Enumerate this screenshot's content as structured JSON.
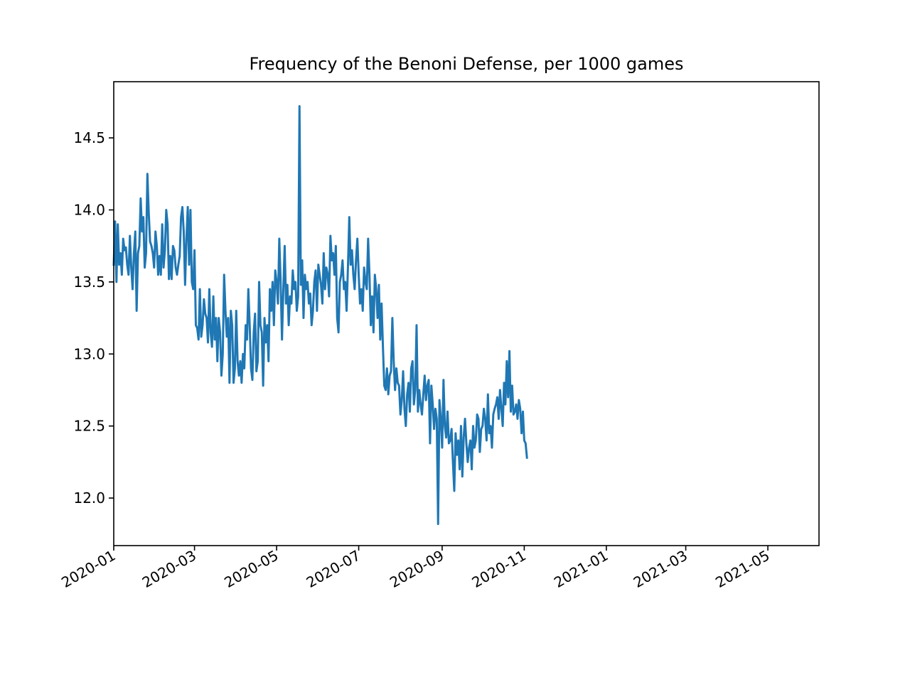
{
  "chart_data": {
    "type": "line",
    "title": "Frequency of the Benoni Defense, per 1000 games",
    "xlabel": "",
    "ylabel": "",
    "x_axis_type": "date",
    "xlim": [
      "2020-01-01",
      "2021-06-08"
    ],
    "ylim": [
      11.67,
      14.89
    ],
    "grid": false,
    "line_color": "#1f77b4",
    "x_ticks": [
      "2020-01",
      "2020-03",
      "2020-05",
      "2020-07",
      "2020-09",
      "2020-11",
      "2021-01",
      "2021-03",
      "2021-05"
    ],
    "y_ticks": [
      "12.0",
      "12.5",
      "13.0",
      "13.5",
      "14.0",
      "14.5"
    ],
    "series": [
      {
        "x_start": "2020-01-01",
        "x_step_days": 1,
        "values": [
          13.62,
          13.92,
          13.5,
          13.9,
          13.62,
          13.7,
          13.55,
          13.8,
          13.72,
          13.74,
          13.62,
          13.55,
          13.82,
          13.6,
          13.45,
          13.7,
          13.85,
          13.3,
          13.7,
          13.75,
          14.08,
          13.85,
          13.95,
          13.6,
          13.7,
          14.25,
          13.98,
          13.78,
          13.75,
          13.7,
          13.6,
          13.85,
          13.75,
          13.55,
          13.68,
          13.55,
          13.9,
          13.6,
          13.72,
          14.0,
          13.9,
          13.52,
          13.68,
          13.52,
          13.75,
          13.72,
          13.6,
          13.55,
          13.62,
          13.68,
          13.95,
          14.02,
          13.85,
          13.48,
          13.8,
          14.02,
          13.62,
          14.0,
          13.5,
          13.45,
          13.72,
          13.2,
          13.18,
          13.1,
          13.45,
          13.12,
          13.2,
          13.38,
          13.28,
          13.25,
          13.08,
          13.45,
          13.15,
          13.05,
          13.4,
          13.1,
          13.25,
          12.95,
          13.25,
          13.15,
          12.85,
          13.0,
          13.55,
          13.3,
          13.12,
          13.25,
          12.8,
          13.3,
          13.2,
          12.8,
          12.9,
          13.3,
          12.95,
          12.85,
          12.95,
          12.8,
          13.0,
          12.9,
          13.2,
          13.1,
          13.45,
          13.2,
          12.9,
          12.82,
          13.15,
          13.28,
          12.88,
          12.95,
          13.5,
          13.2,
          13.15,
          12.78,
          13.25,
          13.08,
          13.2,
          12.95,
          13.45,
          13.3,
          13.5,
          13.2,
          13.58,
          13.5,
          13.35,
          13.8,
          13.5,
          13.1,
          13.45,
          13.75,
          13.35,
          13.48,
          13.2,
          13.4,
          13.35,
          13.58,
          13.45,
          13.5,
          13.3,
          13.4,
          14.72,
          13.48,
          13.65,
          13.25,
          13.55,
          13.45,
          13.5,
          13.35,
          13.42,
          13.2,
          13.3,
          13.5,
          13.58,
          13.3,
          13.62,
          13.55,
          13.48,
          13.35,
          13.7,
          13.45,
          13.6,
          13.55,
          13.4,
          13.82,
          13.65,
          13.7,
          13.55,
          13.75,
          13.25,
          13.15,
          13.5,
          13.55,
          13.65,
          13.45,
          13.5,
          13.3,
          13.6,
          13.95,
          13.62,
          13.72,
          13.55,
          13.45,
          13.65,
          13.8,
          13.55,
          13.35,
          13.45,
          13.3,
          13.6,
          13.5,
          13.45,
          13.8,
          13.55,
          13.2,
          13.4,
          13.15,
          13.55,
          13.45,
          13.25,
          13.48,
          13.1,
          13.35,
          13.05,
          12.78,
          12.75,
          12.9,
          12.72,
          12.85,
          12.88,
          13.25,
          12.95,
          12.75,
          12.9,
          12.8,
          12.78,
          12.58,
          12.68,
          12.88,
          12.62,
          12.5,
          12.72,
          12.8,
          12.6,
          12.9,
          12.95,
          12.65,
          12.75,
          13.2,
          12.6,
          12.75,
          12.65,
          12.58,
          12.72,
          12.85,
          12.68,
          12.78,
          12.82,
          12.38,
          12.78,
          12.65,
          12.48,
          12.62,
          12.55,
          11.82,
          12.68,
          12.55,
          12.35,
          12.82,
          12.5,
          12.42,
          12.6,
          12.38,
          12.4,
          12.48,
          12.25,
          12.05,
          12.45,
          12.3,
          12.4,
          12.2,
          12.5,
          12.15,
          12.42,
          12.55,
          12.38,
          12.25,
          12.35,
          12.4,
          12.2,
          12.5,
          12.35,
          12.4,
          12.58,
          12.55,
          12.32,
          12.48,
          12.5,
          12.62,
          12.55,
          12.4,
          12.72,
          12.45,
          12.5,
          12.35,
          12.58,
          12.62,
          12.65,
          12.7,
          12.55,
          12.75,
          12.62,
          12.5,
          12.8,
          12.65,
          12.95,
          12.7,
          13.02,
          12.6,
          12.78,
          12.58,
          12.6,
          12.65,
          12.55,
          12.68,
          12.62,
          12.45,
          12.6,
          12.4,
          12.38,
          12.28
        ]
      }
    ]
  }
}
